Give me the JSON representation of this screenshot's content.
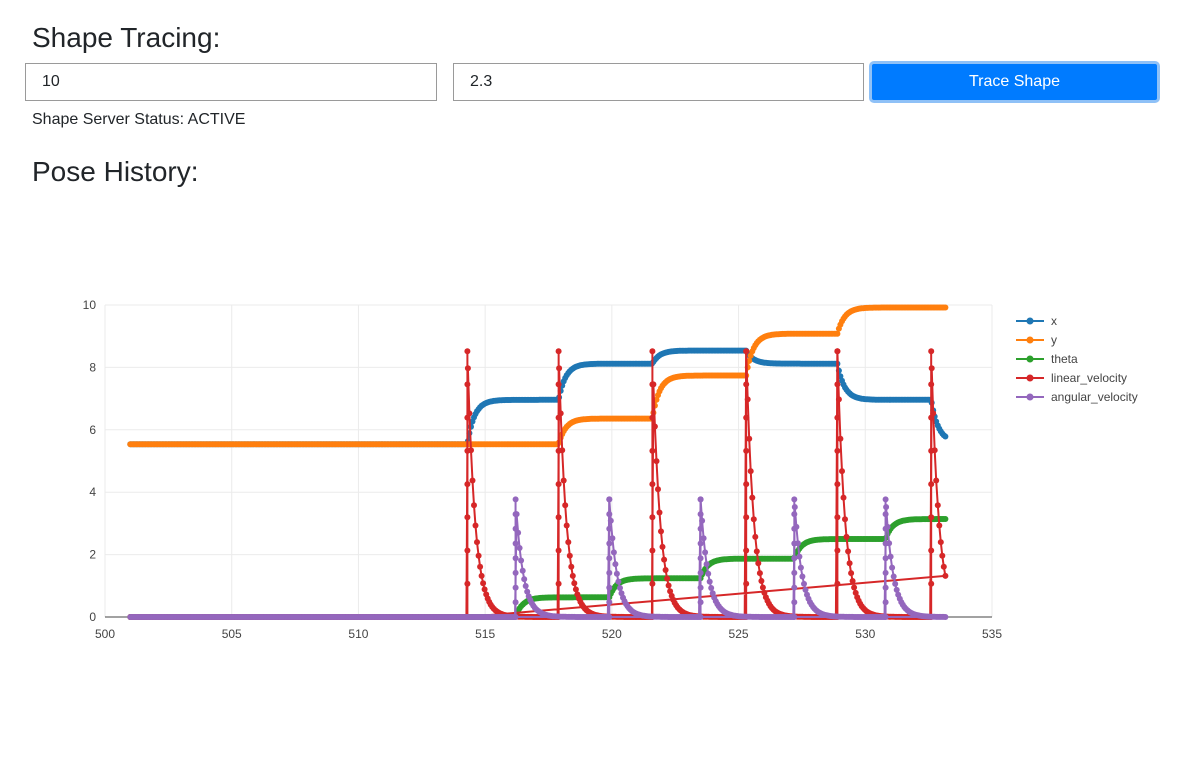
{
  "header": {
    "title": "Shape Tracing:"
  },
  "form": {
    "input_a_value": "10",
    "input_b_value": "2.3",
    "trace_button_label": "Trace Shape"
  },
  "status": {
    "text": "Shape Server Status: ACTIVE"
  },
  "pose_section": {
    "title": "Pose History:"
  },
  "colors": {
    "accent": "#007bff",
    "x": "#1f77b4",
    "y": "#ff7f0e",
    "theta": "#2ca02c",
    "linear_velocity": "#d62728",
    "angular_velocity": "#9467bd"
  },
  "chart_data": {
    "type": "scatter",
    "title": "",
    "xlabel": "",
    "ylabel": "",
    "xlim": [
      500,
      535
    ],
    "ylim": [
      0,
      10
    ],
    "x_ticks": [
      500,
      505,
      510,
      515,
      520,
      525,
      530,
      535
    ],
    "y_ticks": [
      0,
      2,
      4,
      6,
      8,
      10
    ],
    "grid": true,
    "mode": "lines+markers",
    "legend_position": "right",
    "x_range": [
      501,
      533.2
    ],
    "series": [
      {
        "name": "x",
        "segments": [
          {
            "start": 501.0,
            "value": 5.54
          },
          {
            "start": 514.3,
            "value": 6.96
          },
          {
            "start": 517.9,
            "value": 8.12
          },
          {
            "start": 521.6,
            "value": 8.54
          },
          {
            "start": 525.3,
            "value": 8.12
          },
          {
            "start": 528.9,
            "value": 6.96
          },
          {
            "start": 532.6,
            "value": 5.6
          }
        ]
      },
      {
        "name": "y",
        "segments": [
          {
            "start": 501.0,
            "value": 5.54
          },
          {
            "start": 517.9,
            "value": 6.36
          },
          {
            "start": 521.6,
            "value": 7.74
          },
          {
            "start": 525.3,
            "value": 9.08
          },
          {
            "start": 528.9,
            "value": 9.92
          }
        ]
      },
      {
        "name": "theta",
        "segments": [
          {
            "start": 501.0,
            "value": 0.0
          },
          {
            "start": 516.2,
            "value": 0.63
          },
          {
            "start": 519.9,
            "value": 1.24
          },
          {
            "start": 523.5,
            "value": 1.87
          },
          {
            "start": 527.2,
            "value": 2.5
          },
          {
            "start": 530.8,
            "value": 3.14
          }
        ]
      },
      {
        "name": "linear_velocity",
        "baseline": 0.0,
        "spikes": [
          {
            "x": 514.3,
            "peak": 8.52
          },
          {
            "x": 517.9,
            "peak": 8.52
          },
          {
            "x": 521.6,
            "peak": 8.52
          },
          {
            "x": 525.3,
            "peak": 8.52
          },
          {
            "x": 528.9,
            "peak": 8.52
          },
          {
            "x": 532.6,
            "peak": 8.52
          }
        ]
      },
      {
        "name": "angular_velocity",
        "baseline": 0.0,
        "spikes": [
          {
            "x": 516.2,
            "peak": 3.77
          },
          {
            "x": 519.9,
            "peak": 3.77
          },
          {
            "x": 523.5,
            "peak": 3.77
          },
          {
            "x": 527.2,
            "peak": 3.77
          },
          {
            "x": 530.8,
            "peak": 3.77
          }
        ]
      }
    ]
  }
}
